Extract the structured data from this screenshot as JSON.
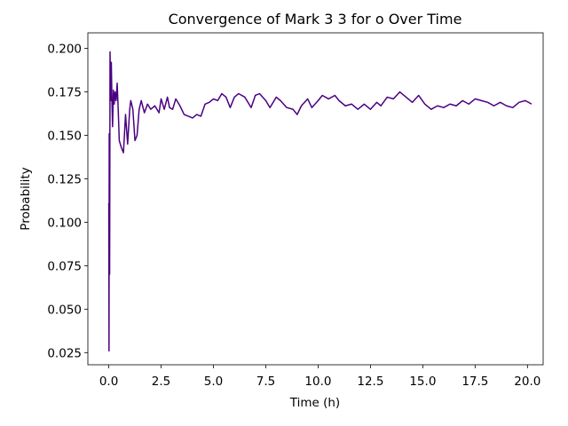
{
  "chart_data": {
    "type": "line",
    "title": "Convergence of Mark 3 3 for o Over Time",
    "x_label": "Time (h)",
    "y_label": "Probability",
    "x": [
      0.0,
      0.01,
      0.02,
      0.04,
      0.06,
      0.09,
      0.12,
      0.15,
      0.18,
      0.22,
      0.26,
      0.3,
      0.35,
      0.4,
      0.45,
      0.5,
      0.6,
      0.7,
      0.8,
      0.9,
      1.0,
      1.05,
      1.15,
      1.25,
      1.35,
      1.45,
      1.55,
      1.7,
      1.85,
      2.0,
      2.2,
      2.4,
      2.5,
      2.65,
      2.8,
      2.9,
      3.05,
      3.2,
      3.4,
      3.6,
      3.8,
      4.0,
      4.2,
      4.4,
      4.6,
      4.8,
      5.0,
      5.2,
      5.4,
      5.6,
      5.8,
      6.0,
      6.2,
      6.5,
      6.8,
      7.0,
      7.2,
      7.5,
      7.7,
      8.0,
      8.2,
      8.5,
      8.8,
      9.0,
      9.2,
      9.5,
      9.7,
      10.0,
      10.2,
      10.5,
      10.8,
      11.0,
      11.3,
      11.6,
      11.9,
      12.2,
      12.5,
      12.8,
      13.0,
      13.3,
      13.6,
      13.9,
      14.2,
      14.5,
      14.8,
      15.1,
      15.4,
      15.7,
      16.0,
      16.3,
      16.6,
      16.9,
      17.2,
      17.5,
      17.8,
      18.1,
      18.4,
      18.7,
      19.0,
      19.3,
      19.6,
      19.9,
      20.2
    ],
    "series": [
      {
        "name": "o",
        "color": "#4b0082",
        "values": [
          0.111,
          0.026,
          0.151,
          0.07,
          0.198,
          0.17,
          0.192,
          0.17,
          0.155,
          0.176,
          0.168,
          0.175,
          0.17,
          0.18,
          0.165,
          0.147,
          0.143,
          0.14,
          0.162,
          0.145,
          0.165,
          0.17,
          0.165,
          0.147,
          0.15,
          0.165,
          0.17,
          0.163,
          0.168,
          0.165,
          0.167,
          0.163,
          0.171,
          0.165,
          0.172,
          0.166,
          0.165,
          0.171,
          0.167,
          0.162,
          0.161,
          0.16,
          0.162,
          0.161,
          0.168,
          0.169,
          0.171,
          0.17,
          0.174,
          0.172,
          0.166,
          0.172,
          0.174,
          0.172,
          0.166,
          0.173,
          0.174,
          0.17,
          0.166,
          0.172,
          0.17,
          0.166,
          0.165,
          0.162,
          0.167,
          0.171,
          0.166,
          0.17,
          0.173,
          0.171,
          0.173,
          0.17,
          0.167,
          0.168,
          0.165,
          0.168,
          0.165,
          0.169,
          0.167,
          0.172,
          0.171,
          0.175,
          0.172,
          0.169,
          0.173,
          0.168,
          0.165,
          0.167,
          0.166,
          0.168,
          0.167,
          0.17,
          0.168,
          0.171,
          0.17,
          0.169,
          0.167,
          0.169,
          0.167,
          0.166,
          0.169,
          0.17,
          0.168
        ]
      }
    ],
    "xlim": [
      -1.0,
      20.75
    ],
    "ylim": [
      0.018,
      0.209
    ],
    "xticks": [
      {
        "value": 0,
        "label": "0.0"
      },
      2.5,
      {
        "value": 5,
        "label": "5.0"
      },
      7.5,
      {
        "value": 10,
        "label": "10.0"
      },
      12.5,
      {
        "value": 15,
        "label": "15.0"
      },
      17.5,
      {
        "value": 20,
        "label": "20.0"
      }
    ],
    "yticks": [
      0.025,
      {
        "value": 0.05,
        "label": "0.050"
      },
      0.075,
      {
        "value": 0.1,
        "label": "0.100"
      },
      0.125,
      {
        "value": 0.15,
        "label": "0.150"
      },
      0.175,
      {
        "value": 0.2,
        "label": "0.200"
      }
    ],
    "grid": false
  }
}
